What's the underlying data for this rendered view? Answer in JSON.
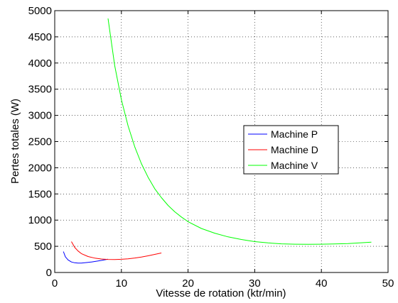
{
  "chart_data": {
    "type": "line",
    "title": "",
    "xlabel": "Vitesse de rotation (ktr/min)",
    "ylabel": "Pertes totales (W)",
    "xlim": [
      0,
      50
    ],
    "ylim": [
      0,
      5000
    ],
    "xticks": [
      0,
      10,
      20,
      30,
      40,
      50
    ],
    "yticks": [
      0,
      500,
      1000,
      1500,
      2000,
      2500,
      3000,
      3500,
      4000,
      4500,
      5000
    ],
    "grid": true,
    "grid_style": "dotted",
    "legend_position": "right-middle",
    "series": [
      {
        "name": "Machine P",
        "color": "#0000ff",
        "x": [
          1.3,
          1.6,
          2.0,
          2.5,
          3.0,
          3.5,
          4.0,
          4.5,
          5.0,
          5.5,
          6.0,
          6.5,
          7.0,
          7.5,
          8.0
        ],
        "y": [
          400,
          300,
          240,
          200,
          185,
          180,
          180,
          185,
          192,
          200,
          210,
          220,
          230,
          242,
          255
        ]
      },
      {
        "name": "Machine D",
        "color": "#ff0000",
        "x": [
          2.5,
          3.0,
          3.5,
          4.0,
          5.0,
          6.0,
          7.0,
          8.0,
          9.0,
          10.0,
          11.0,
          12.0,
          13.0,
          14.0,
          15.0,
          16.0
        ],
        "y": [
          590,
          480,
          410,
          360,
          305,
          275,
          258,
          250,
          248,
          252,
          262,
          276,
          295,
          318,
          345,
          372
        ]
      },
      {
        "name": "Machine V",
        "color": "#00ff00",
        "x": [
          8.0,
          8.5,
          9.0,
          10.0,
          11.0,
          12.0,
          13.0,
          14.0,
          15.0,
          16.0,
          17.0,
          18.0,
          19.0,
          20.0,
          22.0,
          24.0,
          26.0,
          28.0,
          30.0,
          32.0,
          34.0,
          36.0,
          38.0,
          40.0,
          42.0,
          44.0,
          46.0,
          47.5
        ],
        "y": [
          4850,
          4400,
          3950,
          3300,
          2800,
          2400,
          2080,
          1820,
          1600,
          1430,
          1280,
          1160,
          1060,
          970,
          840,
          750,
          680,
          630,
          590,
          565,
          548,
          540,
          538,
          540,
          545,
          553,
          568,
          580
        ]
      }
    ]
  }
}
